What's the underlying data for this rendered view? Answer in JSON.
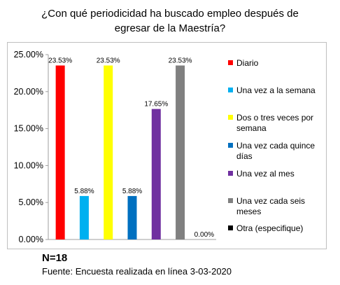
{
  "header": {
    "title_line1": "¿Con qué periodicidad ha buscado empleo después de",
    "title_line2": "egresar de la Maestría?"
  },
  "chart_data": {
    "type": "bar",
    "categories": [
      "Diario",
      "Una vez a la semana",
      "Dos o tres veces por semana",
      "Una vez cada quince días",
      "Una vez al mes",
      "Una vez cada seis meses",
      "Otra (especifique)"
    ],
    "values": [
      23.53,
      5.88,
      23.53,
      5.88,
      17.65,
      23.53,
      0.0
    ],
    "data_labels": [
      "23.53%",
      "5.88%",
      "23.53%",
      "5.88%",
      "17.65%",
      "23.53%",
      "0.00%"
    ],
    "colors": [
      "#ff0000",
      "#00b0f0",
      "#ffff00",
      "#0070c0",
      "#7030a0",
      "#808080",
      "#000000"
    ],
    "ylim": [
      0,
      25
    ],
    "yticks": [
      0,
      5,
      10,
      15,
      20,
      25
    ],
    "ytick_labels": [
      "0.00%",
      "5.00%",
      "10.00%",
      "15.00%",
      "20.00%",
      "25.00%"
    ],
    "legend": {
      "position": "right",
      "entries": [
        "Diario",
        "Una vez a la semana",
        "Dos o tres veces por semana",
        "Una vez cada quince días",
        "Una vez al mes",
        "Una vez cada seis meses",
        "Otra (especifique)"
      ]
    },
    "grid": false
  },
  "footer": {
    "n": "N=18",
    "source": "Fuente: Encuesta realizada en línea 3-03-2020"
  }
}
